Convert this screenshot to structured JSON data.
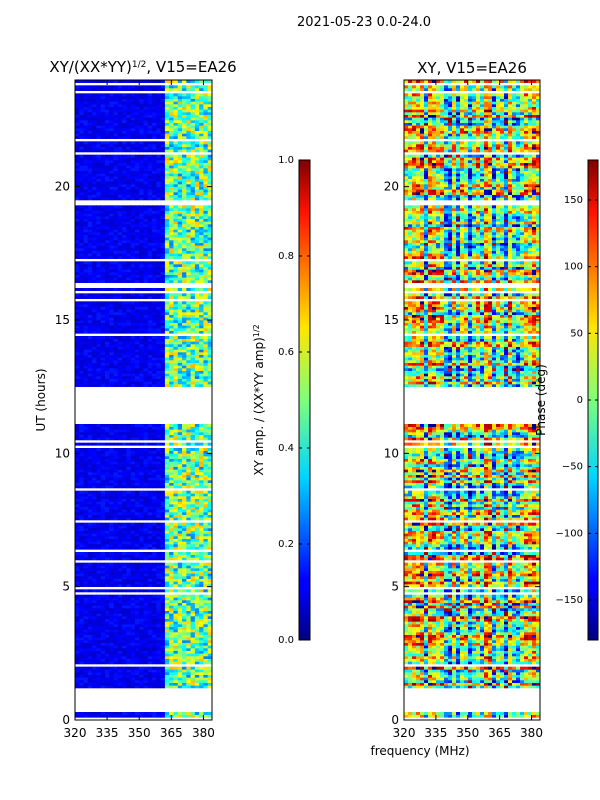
{
  "figure": {
    "suptitle": "2021-05-23 0.0-24.0",
    "shared_xlabel": "frequency (MHz)"
  },
  "chart_data": [
    {
      "type": "heatmap",
      "title": "XY/(XX*YY)",
      "title_exponent": "1/2",
      "title_suffix": ", V15=EA26",
      "xlabel": "",
      "ylabel": "UT (hours)",
      "xlim": [
        320,
        384
      ],
      "ylim": [
        0,
        24
      ],
      "xticks": [
        320,
        335,
        350,
        365,
        380
      ],
      "yticks": [
        0,
        5,
        10,
        15,
        20
      ],
      "colormap": "jet",
      "data_gaps_hours": [
        [
          0.0,
          0.1
        ],
        [
          0.25,
          1.2
        ],
        [
          11.05,
          12.5
        ]
      ],
      "active_band_mhz": [
        362,
        384
      ],
      "colorbar": {
        "label": "XY amp. / (XX*YY amp)",
        "label_exponent": "1/2",
        "range": [
          0.0,
          1.0
        ],
        "ticks": [
          "0.0",
          "0.2",
          "0.4",
          "0.6",
          "0.8",
          "1.0"
        ]
      }
    },
    {
      "type": "heatmap",
      "title": "XY, V15=EA26",
      "xlabel": "frequency (MHz)",
      "ylabel": "",
      "xlim": [
        320,
        384
      ],
      "ylim": [
        0,
        24
      ],
      "xticks": [
        320,
        335,
        350,
        365,
        380
      ],
      "yticks": [
        0,
        5,
        10,
        15,
        20
      ],
      "colormap": "jet",
      "data_gaps_hours": [
        [
          0.0,
          0.1
        ],
        [
          0.25,
          1.2
        ],
        [
          11.05,
          12.5
        ]
      ],
      "colorbar": {
        "label": "Phase (deg)",
        "range": [
          -180,
          180
        ],
        "ticks": [
          "−150",
          "−100",
          "−50",
          "0",
          "50",
          "100",
          "150"
        ]
      }
    }
  ]
}
